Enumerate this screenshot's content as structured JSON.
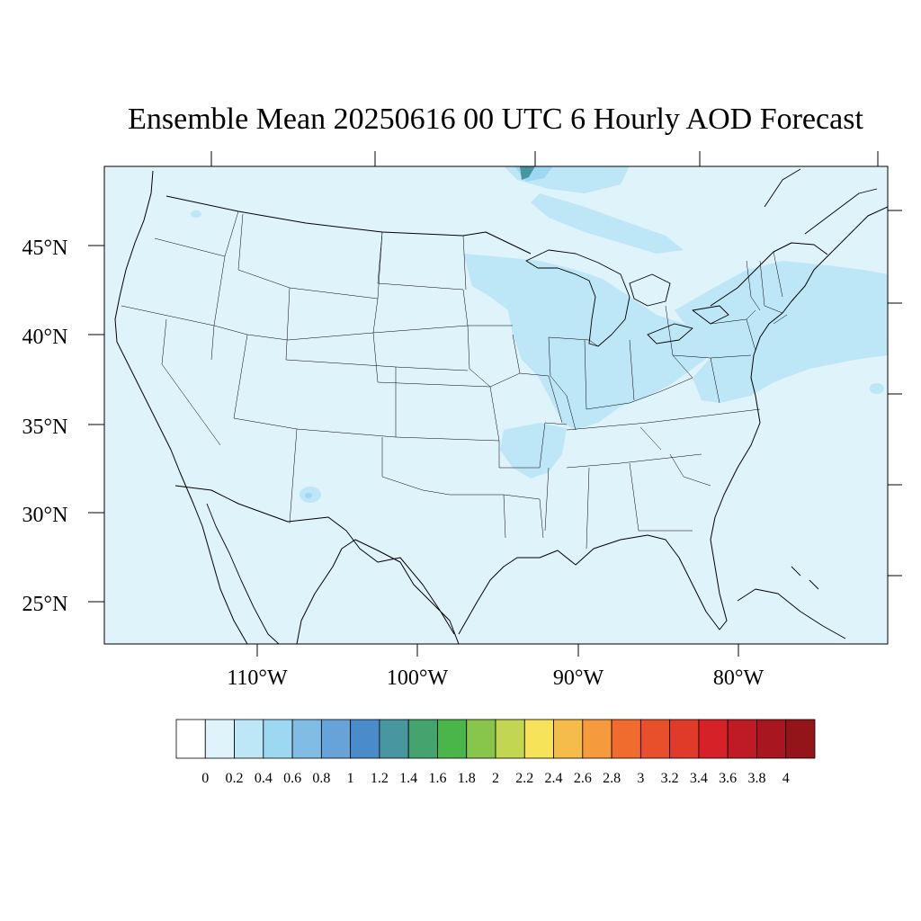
{
  "title": "Ensemble Mean 20250616 00 UTC 6 Hourly AOD Forecast",
  "map": {
    "projection": "lambert-conformal",
    "region": "CONUS",
    "background_color": "#dff3fb",
    "border_color": "#000000",
    "lat_labels": [
      "45°N",
      "40°N",
      "35°N",
      "30°N",
      "25°N"
    ],
    "lon_labels": [
      "110°W",
      "100°W",
      "90°W",
      "80°W"
    ],
    "shaded_features": [
      {
        "region": "Upper Midwest / Great Lakes / Ohio Valley",
        "aod": 0.3
      },
      {
        "region": "Mid-Atlantic / New England / Atlantic offshore",
        "aod": 0.3
      },
      {
        "region": "Arkansas / Mississippi Valley",
        "aod": 0.3
      },
      {
        "region": "Southern Ontario plume",
        "aod": 0.4
      },
      {
        "region": "Northern Minnesota border peak",
        "aod": 1.4
      },
      {
        "region": "Central New Mexico spot",
        "aod": 0.3
      }
    ]
  },
  "colorbar": {
    "tick_labels": [
      "0",
      "0.2",
      "0.4",
      "0.6",
      "0.8",
      "1",
      "1.2",
      "1.4",
      "1.6",
      "1.8",
      "2",
      "2.2",
      "2.4",
      "2.6",
      "2.8",
      "3",
      "3.2",
      "3.4",
      "3.6",
      "3.8",
      "4"
    ],
    "colors": [
      "#ffffff",
      "#dff3fb",
      "#bde6f7",
      "#9dd8f3",
      "#80bce4",
      "#67a3d9",
      "#4a8bc9",
      "#4897a0",
      "#45a46d",
      "#4ab64a",
      "#87c54b",
      "#c3d652",
      "#f7e35a",
      "#f6bc4a",
      "#f59a3d",
      "#f06b2e",
      "#e8502b",
      "#e03a29",
      "#d62128",
      "#be1b24",
      "#a8171f",
      "#941519"
    ]
  }
}
